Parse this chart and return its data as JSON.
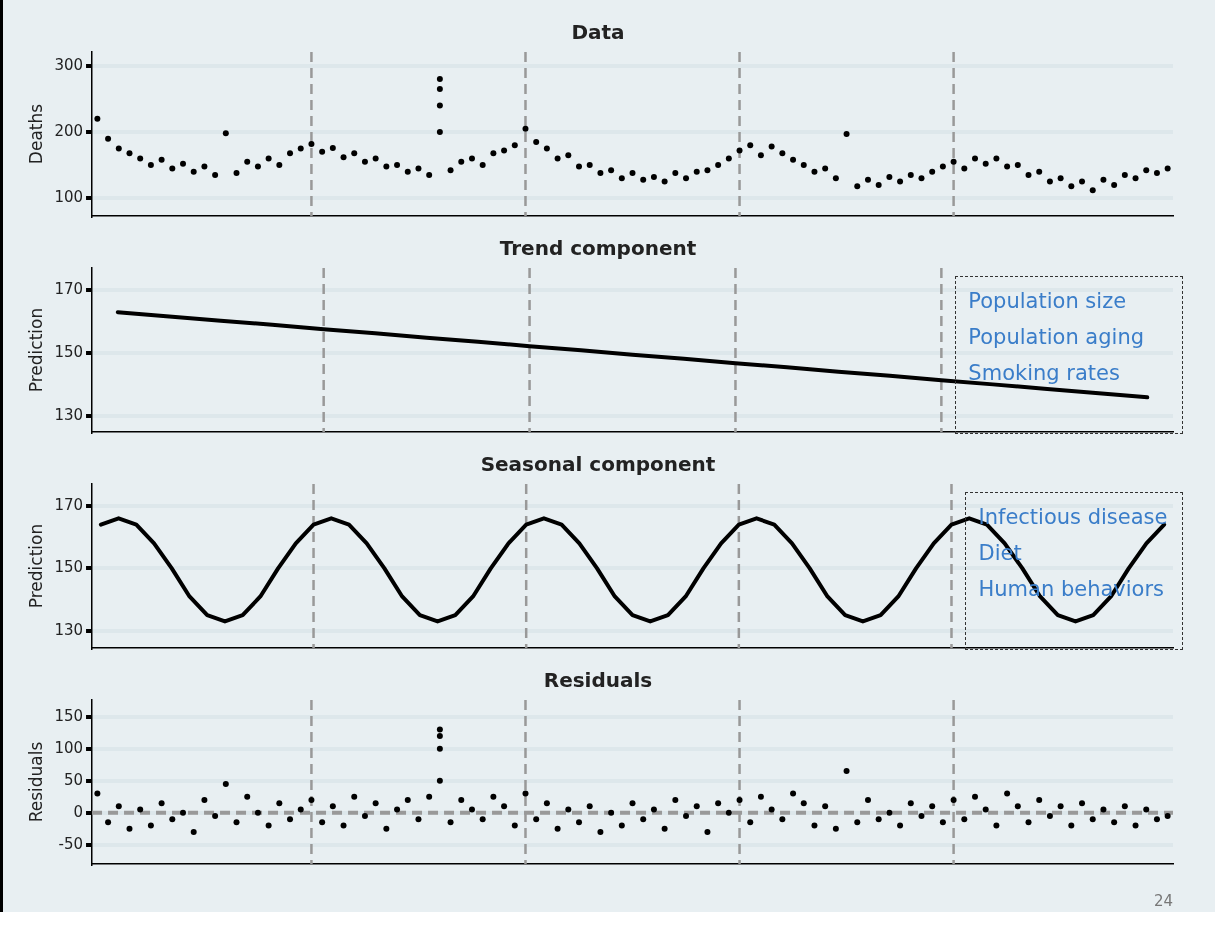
{
  "chart_data": [
    {
      "type": "scatter",
      "title": "Data",
      "ylabel": "Deaths",
      "categories": [
        null,
        null,
        null,
        null,
        null,
        null,
        null,
        null,
        null,
        null,
        null,
        null,
        null,
        null,
        null,
        null,
        null,
        null,
        null,
        null,
        null,
        null,
        null,
        null,
        null,
        null,
        null,
        null,
        null,
        null,
        null,
        null,
        null,
        null,
        null,
        null,
        null,
        null,
        null,
        null,
        null,
        null,
        null,
        null,
        null,
        null,
        null,
        null,
        null,
        null,
        null,
        null,
        null,
        null,
        null,
        null,
        null,
        null,
        null,
        null,
        null,
        null,
        null,
        null,
        null,
        null,
        null,
        null,
        null,
        null,
        null,
        null,
        null,
        null,
        null,
        null,
        null,
        null,
        null,
        null,
        null,
        null,
        null,
        null,
        null,
        null,
        null,
        null,
        null,
        null,
        null,
        null,
        null,
        null,
        null,
        null,
        null,
        null,
        null,
        null,
        null
      ],
      "ylim": [
        73,
        321
      ],
      "yticks": [
        100,
        200,
        300
      ],
      "grid": true,
      "tick_labels": "y",
      "marker": "circle",
      "series": [
        {
          "color": "#000000",
          "values": [
            220,
            190,
            175,
            168,
            160,
            150,
            158,
            145,
            152,
            140,
            148,
            135,
            198,
            138,
            155,
            148,
            160,
            150,
            168,
            175,
            182,
            170,
            176,
            162,
            168,
            155,
            160,
            148,
            150,
            140,
            145,
            135,
            200,
            142,
            155,
            160,
            150,
            168,
            172,
            180,
            205,
            185,
            175,
            160,
            165,
            148,
            150,
            138,
            142,
            130,
            138,
            128,
            132,
            125,
            138,
            130,
            140,
            142,
            150,
            160,
            172,
            180,
            165,
            178,
            168,
            158,
            150,
            140,
            145,
            130,
            197,
            118,
            128,
            120,
            132,
            125,
            135,
            130,
            140,
            148,
            155,
            145,
            160,
            152,
            160,
            148,
            150,
            135,
            140,
            125,
            130,
            118,
            125,
            112,
            128,
            120,
            135,
            130,
            142,
            138,
            145
          ]
        },
        {
          "color": "#000000",
          "values": [
            null,
            null,
            null,
            null,
            null,
            null,
            null,
            null,
            null,
            null,
            null,
            null,
            null,
            null,
            null,
            null,
            null,
            null,
            null,
            null,
            null,
            null,
            null,
            null,
            null,
            null,
            null,
            null,
            null,
            null,
            null,
            null,
            280,
            null,
            null,
            null,
            null,
            null,
            null,
            null,
            null,
            null,
            null,
            null,
            null,
            null,
            null,
            null,
            null,
            null,
            null,
            null,
            null,
            null,
            null,
            null,
            null,
            null,
            null,
            null,
            null,
            null,
            null,
            null,
            null,
            null,
            null,
            null,
            null,
            null,
            null,
            null,
            null,
            null,
            null,
            null,
            null,
            null,
            null,
            null,
            null,
            null,
            null,
            null,
            null,
            null,
            null,
            null,
            null,
            null,
            null,
            null,
            null,
            null,
            null,
            null,
            null,
            null,
            null,
            null,
            null
          ]
        },
        {
          "color": "#000000",
          "values": [
            null,
            null,
            null,
            null,
            null,
            null,
            null,
            null,
            null,
            null,
            null,
            null,
            null,
            null,
            null,
            null,
            null,
            null,
            null,
            null,
            null,
            null,
            null,
            null,
            null,
            null,
            null,
            null,
            null,
            null,
            null,
            null,
            265,
            null,
            null,
            null,
            null,
            null,
            null,
            null,
            null,
            null,
            null,
            null,
            null,
            null,
            null,
            null,
            null,
            null,
            null,
            null,
            null,
            null,
            null,
            null,
            null,
            null,
            null,
            null,
            null,
            null,
            null,
            null,
            null,
            null,
            null,
            null,
            null,
            null,
            null,
            null,
            null,
            null,
            null,
            null,
            null,
            null,
            null,
            null,
            null,
            null,
            null,
            null,
            null,
            null,
            null,
            null,
            null,
            null,
            null,
            null,
            null,
            null,
            null,
            null,
            null,
            null,
            null,
            null,
            null
          ]
        },
        {
          "color": "#000000",
          "values": [
            null,
            null,
            null,
            null,
            null,
            null,
            null,
            null,
            null,
            null,
            null,
            null,
            null,
            null,
            null,
            null,
            null,
            null,
            null,
            null,
            null,
            null,
            null,
            null,
            null,
            null,
            null,
            null,
            null,
            null,
            null,
            null,
            240,
            null,
            null,
            null,
            null,
            null,
            null,
            null,
            null,
            null,
            null,
            null,
            null,
            null,
            null,
            null,
            null,
            null,
            null,
            null,
            null,
            null,
            null,
            null,
            null,
            null,
            null,
            null,
            null,
            null,
            null,
            null,
            null,
            null,
            null,
            null,
            null,
            null,
            null,
            null,
            null,
            null,
            null,
            null,
            null,
            null,
            null,
            null,
            null,
            null,
            null,
            null,
            null,
            null,
            null,
            null,
            null,
            null,
            null,
            null,
            null,
            null,
            null,
            null,
            null,
            null,
            null,
            null,
            null
          ]
        }
      ]
    },
    {
      "type": "line",
      "title": "Trend component",
      "ylabel": "Prediction",
      "categories": [
        null,
        null,
        null,
        null,
        null,
        null,
        null,
        null,
        null,
        null,
        null,
        null,
        null,
        null,
        null,
        null,
        null,
        null,
        null,
        null,
        null
      ],
      "ylim": [
        125,
        177
      ],
      "yticks": [
        130,
        150,
        170
      ],
      "grid": true,
      "tick_labels": "y",
      "marker": "none",
      "line_style": "solid",
      "annotations": [
        "Population size",
        "Population aging",
        "Smoking rates"
      ],
      "series": [
        {
          "color": "#000000",
          "values": [
            163,
            161.6,
            160.3,
            159,
            157.6,
            156.3,
            154.9,
            153.6,
            152.2,
            150.9,
            149.5,
            148.2,
            146.8,
            145.5,
            144.1,
            142.8,
            141.4,
            140.1,
            138.7,
            137.4,
            136
          ]
        }
      ]
    },
    {
      "type": "line",
      "title": "Seasonal component",
      "ylabel": "Prediction",
      "categories": [
        null,
        null,
        null,
        null,
        null,
        null,
        null,
        null,
        null,
        null,
        null,
        null,
        null,
        null,
        null,
        null,
        null,
        null,
        null,
        null,
        null,
        null,
        null,
        null,
        null,
        null,
        null,
        null,
        null,
        null,
        null,
        null,
        null,
        null,
        null,
        null,
        null,
        null,
        null,
        null,
        null,
        null,
        null,
        null,
        null,
        null,
        null,
        null,
        null,
        null,
        null,
        null,
        null,
        null,
        null,
        null,
        null,
        null,
        null,
        null,
        null
      ],
      "ylim": [
        124.5,
        177
      ],
      "yticks": [
        130,
        150,
        170
      ],
      "grid": true,
      "tick_labels": "y",
      "marker": "none",
      "line_style": "solid",
      "annotations": [
        "Infectious disease",
        "Diet",
        "Human behaviors"
      ],
      "series": [
        {
          "color": "#000000",
          "values": [
            164,
            166,
            164,
            158,
            150,
            141,
            135,
            133,
            135,
            141,
            150,
            158,
            164,
            166,
            164,
            158,
            150,
            141,
            135,
            133,
            135,
            141,
            150,
            158,
            164,
            166,
            164,
            158,
            150,
            141,
            135,
            133,
            135,
            141,
            150,
            158,
            164,
            166,
            164,
            158,
            150,
            141,
            135,
            133,
            135,
            141,
            150,
            158,
            164,
            166,
            164,
            158,
            150,
            141,
            135,
            133,
            135,
            141,
            150,
            158,
            164
          ]
        }
      ]
    },
    {
      "type": "scatter",
      "title": "Residuals",
      "ylabel": "Residuals",
      "categories": [
        null,
        null,
        null,
        null,
        null,
        null,
        null,
        null,
        null,
        null,
        null,
        null,
        null,
        null,
        null,
        null,
        null,
        null,
        null,
        null,
        null,
        null,
        null,
        null,
        null,
        null,
        null,
        null,
        null,
        null,
        null,
        null,
        null,
        null,
        null,
        null,
        null,
        null,
        null,
        null,
        null,
        null,
        null,
        null,
        null,
        null,
        null,
        null,
        null,
        null,
        null,
        null,
        null,
        null,
        null,
        null,
        null,
        null,
        null,
        null,
        null,
        null,
        null,
        null,
        null,
        null,
        null,
        null,
        null,
        null,
        null,
        null,
        null,
        null,
        null,
        null,
        null,
        null,
        null,
        null,
        null,
        null,
        null,
        null,
        null,
        null,
        null,
        null,
        null,
        null,
        null,
        null,
        null,
        null,
        null,
        null,
        null,
        null,
        null,
        null,
        null
      ],
      "ylim": [
        -80,
        176
      ],
      "yticks": [
        -50,
        0,
        50,
        100,
        150
      ],
      "grid": true,
      "tick_labels": "y",
      "marker": "circle",
      "annotations": [
        "24"
      ],
      "ref_lines": [
        {
          "axis": "y",
          "value": 0,
          "color": "#999999",
          "line_style": "dashed"
        }
      ],
      "series": [
        {
          "color": "#000000",
          "values": [
            30,
            -15,
            10,
            -25,
            5,
            -20,
            15,
            -10,
            0,
            -30,
            20,
            -5,
            45,
            -15,
            25,
            0,
            -20,
            15,
            -10,
            5,
            20,
            -15,
            10,
            -20,
            25,
            -5,
            15,
            -25,
            5,
            20,
            -10,
            25,
            50,
            -15,
            20,
            5,
            -10,
            25,
            10,
            -20,
            30,
            -10,
            15,
            -25,
            5,
            -15,
            10,
            -30,
            0,
            -20,
            15,
            -10,
            5,
            -25,
            20,
            -5,
            10,
            -30,
            15,
            0,
            20,
            -15,
            25,
            5,
            -10,
            30,
            15,
            -20,
            10,
            -25,
            65,
            -15,
            20,
            -10,
            0,
            -20,
            15,
            -5,
            10,
            -15,
            20,
            -10,
            25,
            5,
            -20,
            30,
            10,
            -15,
            20,
            -5,
            10,
            -20,
            15,
            -10,
            5,
            -15,
            10,
            -20,
            5,
            -10,
            -5
          ]
        },
        {
          "color": "#000000",
          "values": [
            null,
            null,
            null,
            null,
            null,
            null,
            null,
            null,
            null,
            null,
            null,
            null,
            null,
            null,
            null,
            null,
            null,
            null,
            null,
            null,
            null,
            null,
            null,
            null,
            null,
            null,
            null,
            null,
            null,
            null,
            null,
            null,
            130,
            null,
            null,
            null,
            null,
            null,
            null,
            null,
            null,
            null,
            null,
            null,
            null,
            null,
            null,
            null,
            null,
            null,
            null,
            null,
            null,
            null,
            null,
            null,
            null,
            null,
            null,
            null,
            null,
            null,
            null,
            null,
            null,
            null,
            null,
            null,
            null,
            null,
            null,
            null,
            null,
            null,
            null,
            null,
            null,
            null,
            null,
            null,
            null,
            null,
            null,
            null,
            null,
            null,
            null,
            null,
            null,
            null,
            null,
            null,
            null,
            null,
            null,
            null,
            null,
            null,
            null,
            null,
            null
          ]
        },
        {
          "color": "#000000",
          "values": [
            null,
            null,
            null,
            null,
            null,
            null,
            null,
            null,
            null,
            null,
            null,
            null,
            null,
            null,
            null,
            null,
            null,
            null,
            null,
            null,
            null,
            null,
            null,
            null,
            null,
            null,
            null,
            null,
            null,
            null,
            null,
            null,
            120,
            null,
            null,
            null,
            null,
            null,
            null,
            null,
            null,
            null,
            null,
            null,
            null,
            null,
            null,
            null,
            null,
            null,
            null,
            null,
            null,
            null,
            null,
            null,
            null,
            null,
            null,
            null,
            null,
            null,
            null,
            null,
            null,
            null,
            null,
            null,
            null,
            null,
            null,
            null,
            null,
            null,
            null,
            null,
            null,
            null,
            null,
            null,
            null,
            null,
            null,
            null,
            null,
            null,
            null,
            null,
            null,
            null,
            null,
            null,
            null,
            null,
            null,
            null,
            null,
            null,
            null,
            null,
            null
          ]
        },
        {
          "color": "#000000",
          "values": [
            null,
            null,
            null,
            null,
            null,
            null,
            null,
            null,
            null,
            null,
            null,
            null,
            null,
            null,
            null,
            null,
            null,
            null,
            null,
            null,
            null,
            null,
            null,
            null,
            null,
            null,
            null,
            null,
            null,
            null,
            null,
            null,
            100,
            null,
            null,
            null,
            null,
            null,
            null,
            null,
            null,
            null,
            null,
            null,
            null,
            null,
            null,
            null,
            null,
            null,
            null,
            null,
            null,
            null,
            null,
            null,
            null,
            null,
            null,
            null,
            null,
            null,
            null,
            null,
            null,
            null,
            null,
            null,
            null,
            null,
            null,
            null,
            null,
            null,
            null,
            null,
            null,
            null,
            null,
            null,
            null,
            null,
            null,
            null,
            null,
            null,
            null,
            null,
            null,
            null,
            null,
            null,
            null,
            null,
            null,
            null,
            null,
            null,
            null,
            null,
            null
          ]
        }
      ]
    }
  ]
}
